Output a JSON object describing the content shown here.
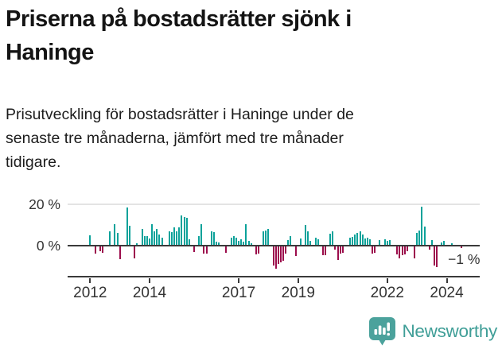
{
  "header": {
    "title_lines": [
      "Priserna på bostadsrätter sjönk i",
      "Haninge"
    ],
    "subtitle_lines": [
      "Prisutveckling för bostadsrätter i Haninge under de",
      "senaste tre månaderna, jämfört med tre månader",
      "tidigare."
    ]
  },
  "chart_data": {
    "type": "bar",
    "title": "Prisutveckling för bostadsrätter i Haninge, 3 månader jämfört med föregående 3 månader",
    "unit": "%",
    "x_start": "2012-01",
    "x_end": "2024-07",
    "ylim": [
      -15,
      25
    ],
    "grid": "single line at 20%",
    "legend": "none",
    "values": [
      5,
      0,
      -4,
      0,
      -2.5,
      -3.5,
      0,
      0,
      7,
      0,
      10.5,
      6,
      -6.5,
      0,
      0,
      18.5,
      9.5,
      0,
      -6,
      1,
      0,
      8,
      4.5,
      4.5,
      3.5,
      10.5,
      7,
      8,
      5.5,
      4,
      0,
      0,
      7,
      6.5,
      9,
      7,
      9,
      14.5,
      14,
      13.5,
      3,
      0,
      -3,
      0,
      4.5,
      10.5,
      -4,
      -4,
      0,
      7,
      6.5,
      2,
      1.5,
      0,
      0,
      -3.5,
      0,
      4,
      4.5,
      4,
      2.5,
      3,
      2,
      10.5,
      2.2,
      1.3,
      0,
      -4.2,
      -3.8,
      0,
      7,
      7.3,
      8,
      0,
      -9.7,
      -11,
      -9,
      -8,
      -7.4,
      -3.8,
      2.8,
      4.5,
      0,
      -5,
      0,
      3.3,
      0,
      10,
      7,
      2.2,
      0,
      3.8,
      3.1,
      0,
      -4.8,
      -4.8,
      0,
      5.9,
      6.8,
      -2.1,
      -6.8,
      -4,
      -3.3,
      0,
      0,
      3.8,
      4.1,
      5.3,
      6.3,
      6.8,
      5.3,
      3.4,
      3.8,
      3.1,
      -4,
      -3.6,
      0,
      2.7,
      0,
      3.1,
      2.5,
      2.8,
      0,
      0,
      -4.1,
      -6.3,
      -4.8,
      -4.1,
      -2.6,
      0,
      0,
      -6.3,
      6,
      7.5,
      19,
      9.3,
      0,
      -2,
      2.6,
      -9.7,
      -10.2,
      0,
      1.4,
      2.2,
      0,
      0,
      1,
      0,
      0,
      0,
      -1
    ],
    "yticks": [
      {
        "label": "20 %",
        "value": 20
      },
      {
        "label": "0 %",
        "value": 0
      }
    ],
    "xticks": [
      {
        "label": "2012",
        "month": 0
      },
      {
        "label": "2014",
        "month": 24
      },
      {
        "label": "2017",
        "month": 60
      },
      {
        "label": "2019",
        "month": 84
      },
      {
        "label": "2022",
        "month": 120
      },
      {
        "label": "2024",
        "month": 144
      }
    ],
    "annotation": {
      "text": "−1 %",
      "value": -1
    },
    "colors": {
      "positive": "#0ba29a",
      "negative": "#9c0d4c",
      "gridline": "#e4e4e4",
      "axis": "#3a3a3a"
    }
  },
  "footer": {
    "brand": "Newsworthy",
    "logo_icon": "newsworthy-speech-bubble-chart-icon",
    "brand_color": "#3f9e97",
    "icon_color": "#4ba29c"
  }
}
